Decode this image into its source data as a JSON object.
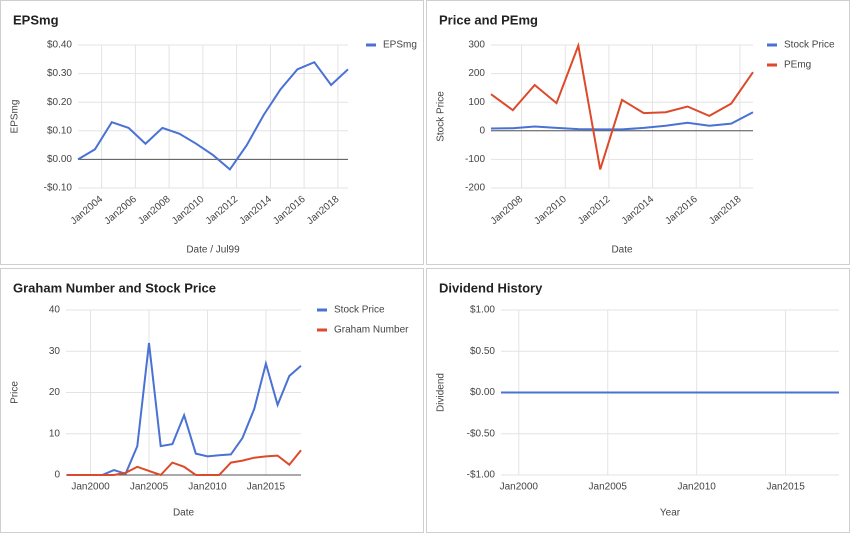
{
  "chart_data": [
    {
      "type": "line",
      "title": "EPSmg",
      "x_label": "Date / Jul99",
      "y_label": "EPSmg",
      "x": [
        2002.6,
        2003.6,
        2004.6,
        2005.6,
        2006.6,
        2007.6,
        2008.6,
        2009.6,
        2010.6,
        2011.6,
        2012.6,
        2013.6,
        2014.6,
        2015.6,
        2016.6,
        2017.6,
        2018.6
      ],
      "xlim": [
        2002.6,
        2018.6
      ],
      "xticks": [
        {
          "value": 2004,
          "label": "Jan2004"
        },
        {
          "value": 2006,
          "label": "Jan2006"
        },
        {
          "value": 2008,
          "label": "Jan2008"
        },
        {
          "value": 2010,
          "label": "Jan2010"
        },
        {
          "value": 2012,
          "label": "Jan2012"
        },
        {
          "value": 2014,
          "label": "Jan2014"
        },
        {
          "value": 2016,
          "label": "Jan2016"
        },
        {
          "value": 2018,
          "label": "Jan2018"
        }
      ],
      "ylim": [
        -0.1,
        0.4
      ],
      "yticks": [
        {
          "value": -0.1,
          "label": "-$0.10"
        },
        {
          "value": 0,
          "label": "$0.00"
        },
        {
          "value": 0.1,
          "label": "$0.10"
        },
        {
          "value": 0.2,
          "label": "$0.20"
        },
        {
          "value": 0.3,
          "label": "$0.30"
        },
        {
          "value": 0.4,
          "label": "$0.40"
        }
      ],
      "grid": true,
      "legend": "right",
      "rotate_x_labels": true,
      "series": [
        {
          "name": "EPSmg",
          "color": "#4a72d3",
          "values": [
            0.0,
            0.035,
            0.13,
            0.11,
            0.055,
            0.11,
            0.09,
            0.055,
            0.015,
            -0.035,
            0.05,
            0.155,
            0.245,
            0.315,
            0.34,
            0.26,
            0.315
          ]
        }
      ]
    },
    {
      "type": "line",
      "title": "Price and PEmg",
      "x_label": "Date",
      "y_label": "Stock Price",
      "x": [
        2006.6,
        2007.6,
        2008.6,
        2009.6,
        2010.6,
        2011.6,
        2012.6,
        2013.6,
        2014.6,
        2015.6,
        2016.6,
        2017.6,
        2018.6
      ],
      "xlim": [
        2006.6,
        2018.6
      ],
      "xticks": [
        {
          "value": 2008,
          "label": "Jan2008"
        },
        {
          "value": 2010,
          "label": "Jan2010"
        },
        {
          "value": 2012,
          "label": "Jan2012"
        },
        {
          "value": 2014,
          "label": "Jan2014"
        },
        {
          "value": 2016,
          "label": "Jan2016"
        },
        {
          "value": 2018,
          "label": "Jan2018"
        }
      ],
      "ylim": [
        -200,
        300
      ],
      "yticks": [
        -200,
        -100,
        0,
        100,
        200,
        300
      ],
      "grid": true,
      "legend": "right",
      "rotate_x_labels": true,
      "series": [
        {
          "name": "Stock Price",
          "color": "#4a72d3",
          "values": [
            8,
            9,
            15,
            10,
            6,
            5,
            5,
            10,
            18,
            28,
            18,
            25,
            65
          ]
        },
        {
          "name": "PEmg",
          "color": "#dc4a2b",
          "values": [
            128,
            72,
            160,
            97,
            298,
            -135,
            108,
            62,
            65,
            85,
            52,
            95,
            205
          ]
        }
      ]
    },
    {
      "type": "line",
      "title": "Graham Number and Stock Price",
      "x_label": "Date",
      "y_label": "Price",
      "x": [
        1998,
        1999,
        2000,
        2001,
        2002,
        2003,
        2004,
        2005,
        2006,
        2007,
        2008,
        2009,
        2010,
        2011,
        2012,
        2013,
        2014,
        2015,
        2016,
        2017,
        2018
      ],
      "xlim": [
        1997.9,
        2018
      ],
      "xticks": [
        {
          "value": 2000,
          "label": "Jan2000"
        },
        {
          "value": 2005,
          "label": "Jan2005"
        },
        {
          "value": 2010,
          "label": "Jan2010"
        },
        {
          "value": 2015,
          "label": "Jan2015"
        }
      ],
      "ylim": [
        0,
        40
      ],
      "yticks": [
        0,
        10,
        20,
        30,
        40
      ],
      "grid": true,
      "legend": "right",
      "rotate_x_labels": false,
      "series": [
        {
          "name": "Stock Price",
          "color": "#4a72d3",
          "values": [
            0,
            0,
            0,
            0,
            1.2,
            0.3,
            7,
            32,
            7,
            7.5,
            14.5,
            5.2,
            4.5,
            4.8,
            5,
            9,
            16,
            27,
            17,
            24,
            26.5
          ]
        },
        {
          "name": "Graham Number",
          "color": "#dc4a2b",
          "values": [
            0,
            0,
            0,
            0,
            0,
            0.5,
            2,
            1,
            0,
            3,
            2,
            0,
            0,
            0,
            3,
            3.5,
            4.2,
            4.5,
            4.7,
            2.5,
            6
          ]
        }
      ]
    },
    {
      "type": "line",
      "title": "Dividend History",
      "x_label": "Year",
      "y_label": "Dividend",
      "x": [
        1999,
        2000,
        2001,
        2002,
        2003,
        2004,
        2005,
        2006,
        2007,
        2008,
        2009,
        2010,
        2011,
        2012,
        2013,
        2014,
        2015,
        2016,
        2017,
        2018
      ],
      "xlim": [
        1999,
        2018
      ],
      "xticks": [
        {
          "value": 2000,
          "label": "Jan2000"
        },
        {
          "value": 2005,
          "label": "Jan2005"
        },
        {
          "value": 2010,
          "label": "Jan2010"
        },
        {
          "value": 2015,
          "label": "Jan2015"
        }
      ],
      "ylim": [
        -1,
        1
      ],
      "yticks": [
        {
          "value": -1,
          "label": "-$1.00"
        },
        {
          "value": -0.5,
          "label": "-$0.50"
        },
        {
          "value": 0,
          "label": "$0.00"
        },
        {
          "value": 0.5,
          "label": "$0.50"
        },
        {
          "value": 1,
          "label": "$1.00"
        }
      ],
      "grid": true,
      "rotate_x_labels": false,
      "series": [
        {
          "name": "Dividend",
          "color": "#4a72d3",
          "values": [
            0,
            0,
            0,
            0,
            0,
            0,
            0,
            0,
            0,
            0,
            0,
            0,
            0,
            0,
            0,
            0,
            0,
            0,
            0,
            0
          ]
        }
      ]
    }
  ]
}
